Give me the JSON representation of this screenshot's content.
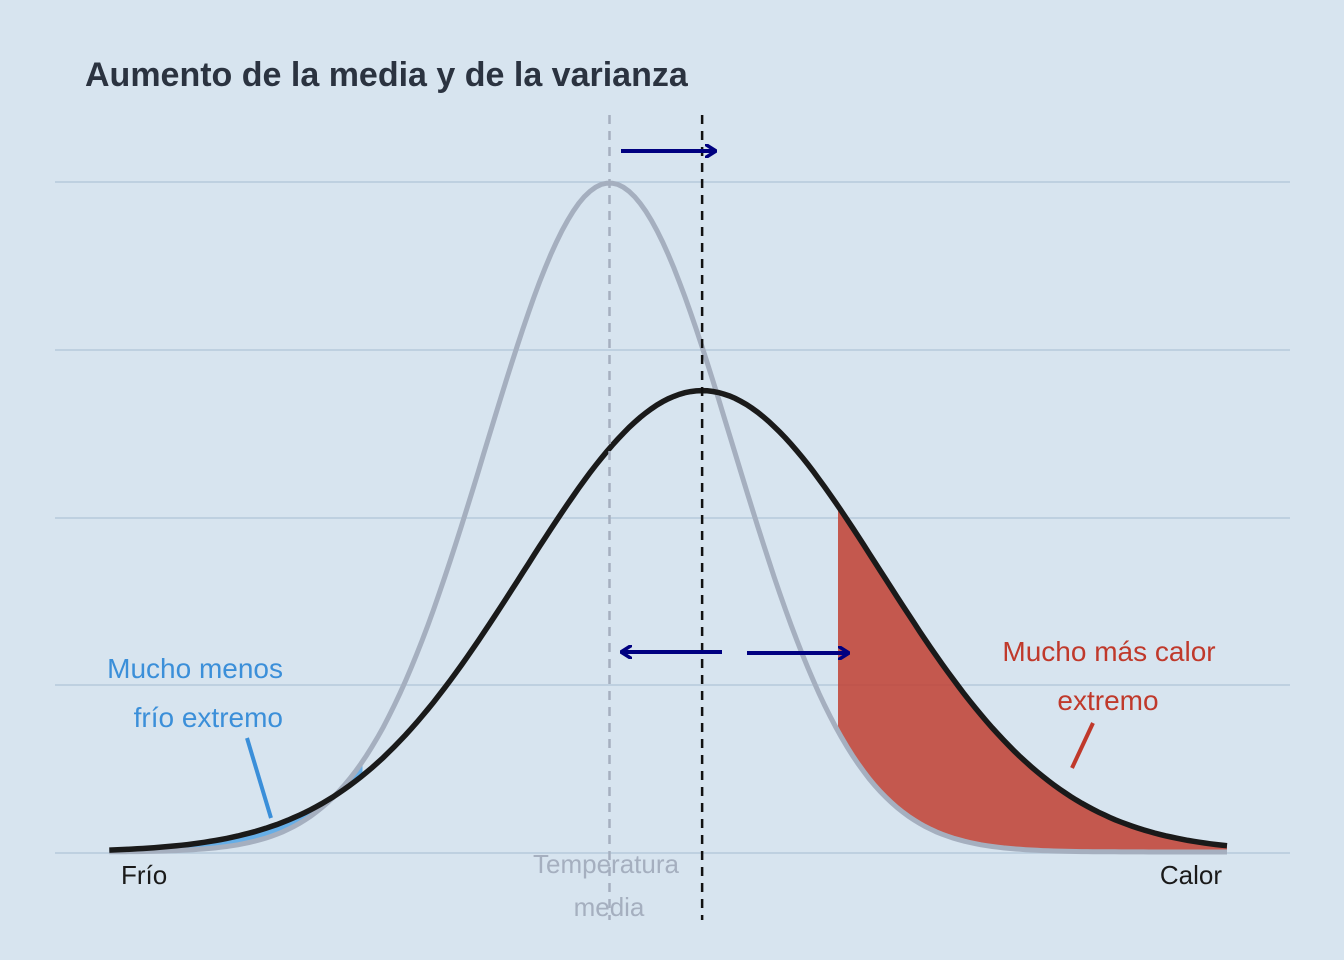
{
  "chart_data": {
    "type": "area",
    "title": "Aumento de la media y de la varianza",
    "x_labels": {
      "left": "Frío",
      "right": "Calor"
    },
    "mean_label": [
      "Temperatura",
      "media"
    ],
    "grid": "horizontal",
    "series": [
      {
        "name": "",
        "kind": "before",
        "mean": 0,
        "sd": 1,
        "color": "#a5afbf"
      },
      {
        "name": "",
        "kind": "after",
        "mean": 0.75,
        "sd": 1.45,
        "color": "#1a1a1a"
      }
    ],
    "annotations": [
      {
        "lines": [
          "Mucho menos",
          "frío extremo"
        ],
        "color": "#3b8fd9"
      },
      {
        "lines": [
          "Mucho más calor",
          "extremo"
        ],
        "color": "#c0392b"
      }
    ],
    "shaded": {
      "cold_threshold": -2.0,
      "hot_threshold": 1.85,
      "cold_color": "#5aa7e6",
      "hot_color": "#c0392b"
    },
    "arrow_color": "#000080"
  }
}
